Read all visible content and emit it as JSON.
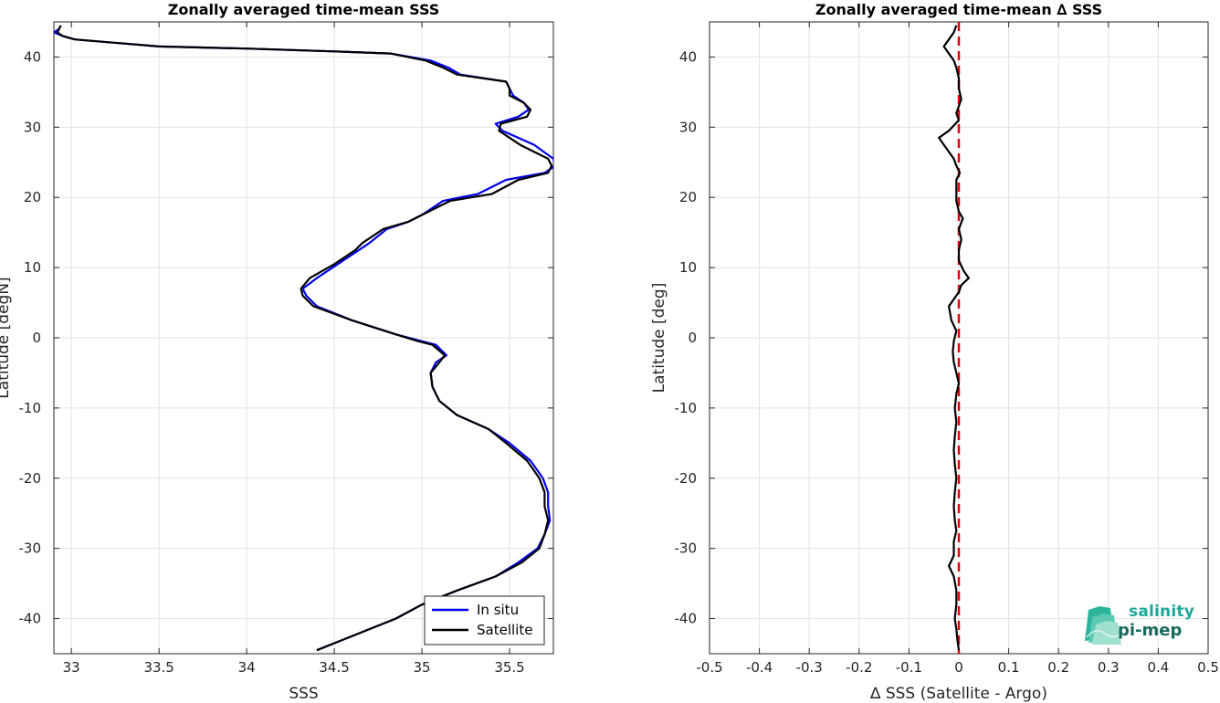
{
  "chart_data": [
    {
      "type": "line",
      "title": "Zonally averaged time-mean SSS",
      "xlabel": "SSS",
      "ylabel": "Latitude [degN]",
      "xlim": [
        32.9,
        35.75
      ],
      "ylim": [
        -45,
        45
      ],
      "xticks": [
        "33",
        "33.5",
        "34",
        "34.5",
        "35",
        "35.5"
      ],
      "xtick_values": [
        33,
        33.5,
        34,
        34.5,
        35,
        35.5
      ],
      "yticks": [
        "40",
        "30",
        "20",
        "10",
        "0",
        "-10",
        "-20",
        "-30",
        "-40"
      ],
      "ytick_values": [
        40,
        30,
        20,
        10,
        0,
        -10,
        -20,
        -30,
        -40
      ],
      "grid": true,
      "legend_position": "bottom-right",
      "series": [
        {
          "name": "In situ",
          "color": "#0000ee",
          "points": [
            [
              34.4,
              -44.5
            ],
            [
              34.5,
              -43.5
            ],
            [
              34.7,
              -41.5
            ],
            [
              34.85,
              -40
            ],
            [
              35.0,
              -38
            ],
            [
              35.2,
              -36
            ],
            [
              35.42,
              -34
            ],
            [
              35.55,
              -32
            ],
            [
              35.66,
              -30
            ],
            [
              35.7,
              -28
            ],
            [
              35.73,
              -26
            ],
            [
              35.72,
              -24
            ],
            [
              35.72,
              -22
            ],
            [
              35.69,
              -20
            ],
            [
              35.62,
              -17.5
            ],
            [
              35.5,
              -15
            ],
            [
              35.38,
              -13
            ],
            [
              35.2,
              -11
            ],
            [
              35.1,
              -9
            ],
            [
              35.06,
              -7
            ],
            [
              35.05,
              -5
            ],
            [
              35.08,
              -3.5
            ],
            [
              35.14,
              -2.5
            ],
            [
              35.08,
              -1
            ],
            [
              35.0,
              -0.5
            ],
            [
              34.85,
              0.5
            ],
            [
              34.6,
              2.5
            ],
            [
              34.4,
              4.5
            ],
            [
              34.34,
              6
            ],
            [
              34.32,
              7
            ],
            [
              34.4,
              8.5
            ],
            [
              34.52,
              10.5
            ],
            [
              34.64,
              12.5
            ],
            [
              34.7,
              13.5
            ],
            [
              34.8,
              15.5
            ],
            [
              34.92,
              16.5
            ],
            [
              35.0,
              17.5
            ],
            [
              35.12,
              19.5
            ],
            [
              35.32,
              20.5
            ],
            [
              35.48,
              22.5
            ],
            [
              35.7,
              23.5
            ],
            [
              35.76,
              24.5
            ],
            [
              35.75,
              25.5
            ],
            [
              35.64,
              27.5
            ],
            [
              35.46,
              29.5
            ],
            [
              35.42,
              30.5
            ],
            [
              35.55,
              31.5
            ],
            [
              35.61,
              32.5
            ],
            [
              35.58,
              33.5
            ],
            [
              35.52,
              34.5
            ],
            [
              35.5,
              35.5
            ],
            [
              35.48,
              36.5
            ],
            [
              35.22,
              37.5
            ],
            [
              35.15,
              38.5
            ],
            [
              35.05,
              39.5
            ],
            [
              34.82,
              40.5
            ],
            [
              34.5,
              40.8
            ],
            [
              34.0,
              41.2
            ],
            [
              33.5,
              41.5
            ],
            [
              33.02,
              42.5
            ],
            [
              32.95,
              43
            ],
            [
              32.9,
              43.5
            ],
            [
              32.93,
              44
            ]
          ]
        },
        {
          "name": "Satellite",
          "color": "#000000",
          "points": [
            [
              34.4,
              -44.5
            ],
            [
              34.5,
              -43.5
            ],
            [
              34.7,
              -41.5
            ],
            [
              34.85,
              -40
            ],
            [
              35.0,
              -38
            ],
            [
              35.2,
              -36
            ],
            [
              35.42,
              -34
            ],
            [
              35.57,
              -32
            ],
            [
              35.67,
              -30
            ],
            [
              35.7,
              -28
            ],
            [
              35.72,
              -26
            ],
            [
              35.7,
              -24
            ],
            [
              35.7,
              -22
            ],
            [
              35.67,
              -20
            ],
            [
              35.6,
              -17.5
            ],
            [
              35.48,
              -15
            ],
            [
              35.38,
              -13
            ],
            [
              35.2,
              -11
            ],
            [
              35.1,
              -9
            ],
            [
              35.06,
              -7
            ],
            [
              35.05,
              -5
            ],
            [
              35.1,
              -3.5
            ],
            [
              35.13,
              -2.5
            ],
            [
              35.06,
              -1
            ],
            [
              34.98,
              -0.5
            ],
            [
              34.85,
              0.5
            ],
            [
              34.6,
              2.5
            ],
            [
              34.38,
              4.5
            ],
            [
              34.32,
              6
            ],
            [
              34.31,
              7
            ],
            [
              34.36,
              8.5
            ],
            [
              34.5,
              10.5
            ],
            [
              34.62,
              12.5
            ],
            [
              34.66,
              13.5
            ],
            [
              34.78,
              15.5
            ],
            [
              34.92,
              16.5
            ],
            [
              35.0,
              17.5
            ],
            [
              35.16,
              19.5
            ],
            [
              35.4,
              20.5
            ],
            [
              35.55,
              22.5
            ],
            [
              35.72,
              23.5
            ],
            [
              35.74,
              24.5
            ],
            [
              35.72,
              25.5
            ],
            [
              35.56,
              27.5
            ],
            [
              35.44,
              29.5
            ],
            [
              35.45,
              30.5
            ],
            [
              35.6,
              31.5
            ],
            [
              35.62,
              32.5
            ],
            [
              35.58,
              33.5
            ],
            [
              35.5,
              34.5
            ],
            [
              35.5,
              35.5
            ],
            [
              35.48,
              36.5
            ],
            [
              35.2,
              37.5
            ],
            [
              35.12,
              38.5
            ],
            [
              35.02,
              39.5
            ],
            [
              34.82,
              40.5
            ],
            [
              34.5,
              40.8
            ],
            [
              34.0,
              41.2
            ],
            [
              33.5,
              41.5
            ],
            [
              33.02,
              42.5
            ],
            [
              32.95,
              43
            ],
            [
              32.92,
              43.5
            ],
            [
              32.94,
              44.5
            ]
          ]
        }
      ]
    },
    {
      "type": "line",
      "title": "Zonally averaged time-mean ∆ SSS",
      "xlabel": "∆ SSS (Satellite - Argo)",
      "ylabel": "Latitude [deg]",
      "xlim": [
        -0.5,
        0.5
      ],
      "ylim": [
        -45,
        45
      ],
      "xticks": [
        "-0.5",
        "-0.4",
        "-0.3",
        "-0.2",
        "-0.1",
        "0",
        "0.1",
        "0.2",
        "0.3",
        "0.4",
        "0.5"
      ],
      "xtick_values": [
        -0.5,
        -0.4,
        -0.3,
        -0.2,
        -0.1,
        0,
        0.1,
        0.2,
        0.3,
        0.4,
        0.5
      ],
      "yticks": [
        "40",
        "30",
        "20",
        "10",
        "0",
        "-10",
        "-20",
        "-30",
        "-40"
      ],
      "ytick_values": [
        40,
        30,
        20,
        10,
        0,
        -10,
        -20,
        -30,
        -40
      ],
      "grid": true,
      "reference_line": {
        "x": 0,
        "color": "#e8000b",
        "style": "dashed"
      },
      "series": [
        {
          "name": "",
          "color": "#000000",
          "points": [
            [
              0.0,
              -44.5
            ],
            [
              -0.003,
              -43
            ],
            [
              -0.005,
              -41.5
            ],
            [
              -0.008,
              -40
            ],
            [
              -0.005,
              -38
            ],
            [
              -0.005,
              -36
            ],
            [
              -0.01,
              -34
            ],
            [
              -0.02,
              -32.5
            ],
            [
              -0.01,
              -31
            ],
            [
              -0.01,
              -29
            ],
            [
              -0.005,
              -27.5
            ],
            [
              -0.008,
              -26
            ],
            [
              -0.01,
              -24
            ],
            [
              -0.008,
              -22
            ],
            [
              -0.005,
              -20
            ],
            [
              -0.008,
              -18
            ],
            [
              -0.01,
              -16
            ],
            [
              -0.008,
              -14
            ],
            [
              -0.005,
              -12
            ],
            [
              -0.008,
              -10
            ],
            [
              -0.005,
              -8
            ],
            [
              0.0,
              -6.5
            ],
            [
              -0.005,
              -5
            ],
            [
              -0.01,
              -3.5
            ],
            [
              -0.012,
              -2
            ],
            [
              -0.01,
              -0.5
            ],
            [
              -0.005,
              1
            ],
            [
              -0.015,
              2.5
            ],
            [
              -0.02,
              4.5
            ],
            [
              -0.01,
              5.5
            ],
            [
              0.0,
              6.5
            ],
            [
              0.005,
              7.5
            ],
            [
              0.02,
              8.5
            ],
            [
              0.01,
              9.5
            ],
            [
              0.0,
              11
            ],
            [
              0.0,
              12.5
            ],
            [
              0.005,
              14
            ],
            [
              0.0,
              15.5
            ],
            [
              0.008,
              17
            ],
            [
              0.0,
              18
            ],
            [
              -0.005,
              19.5
            ],
            [
              -0.005,
              21
            ],
            [
              -0.005,
              22.5
            ],
            [
              0.002,
              23.5
            ],
            [
              -0.005,
              24.5
            ],
            [
              -0.01,
              25.5
            ],
            [
              -0.03,
              27.5
            ],
            [
              -0.04,
              28.5
            ],
            [
              -0.02,
              29.5
            ],
            [
              0.0,
              31
            ],
            [
              -0.005,
              32
            ],
            [
              0.0,
              33
            ],
            [
              0.005,
              34
            ],
            [
              0.0,
              35.5
            ],
            [
              0.0,
              37
            ],
            [
              -0.005,
              38.5
            ],
            [
              -0.01,
              39.5
            ],
            [
              -0.02,
              40.5
            ],
            [
              -0.03,
              41.5
            ],
            [
              -0.02,
              42.5
            ],
            [
              -0.01,
              43.5
            ],
            [
              -0.005,
              44.5
            ]
          ]
        }
      ]
    }
  ],
  "logo": {
    "line1": "salinity",
    "line2": "pi-mep"
  }
}
